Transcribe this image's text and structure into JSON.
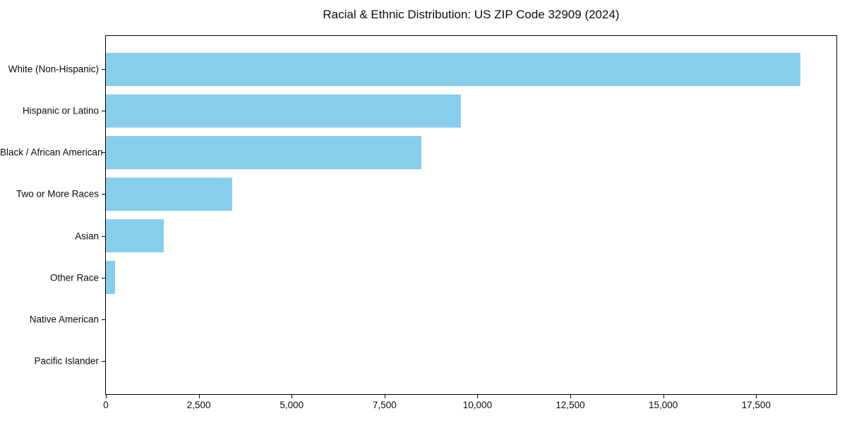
{
  "chart_data": {
    "type": "bar",
    "orientation": "horizontal",
    "title": "Racial & Ethnic Distribution: US ZIP Code 32909 (2024)",
    "categories": [
      "White (Non-Hispanic)",
      "Hispanic or Latino",
      "Black / African American",
      "Two or More Races",
      "Asian",
      "Other Race",
      "Native American",
      "Pacific Islander"
    ],
    "values": [
      18700,
      9550,
      8500,
      3400,
      1550,
      240,
      0,
      0
    ],
    "xlabel": "",
    "ylabel": "",
    "xlim": [
      0,
      19660
    ],
    "x_ticks": [
      0,
      2500,
      5000,
      7500,
      10000,
      12500,
      15000,
      17500
    ],
    "x_tick_labels": [
      "0",
      "2,500",
      "5,000",
      "7,500",
      "10,000",
      "12,500",
      "15,000",
      "17,500"
    ],
    "bar_color": "#87CEEB",
    "grid": false,
    "legend": null,
    "plot_border_color": "#000000"
  }
}
